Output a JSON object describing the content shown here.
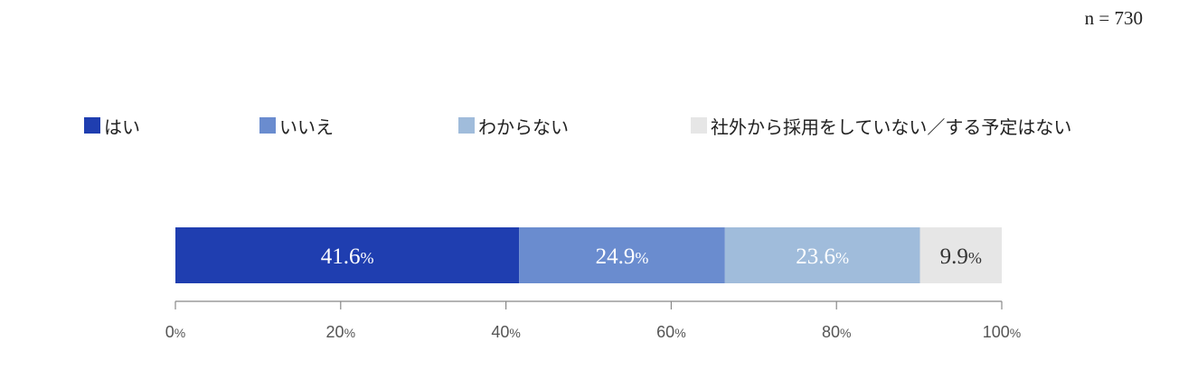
{
  "note": "n = 730",
  "chart_data": {
    "type": "bar",
    "orientation": "horizontal",
    "stacked": true,
    "categories": [
      ""
    ],
    "series": [
      {
        "name": "はい",
        "values": [
          41.6
        ],
        "color": "#1f3eb0",
        "label": "41.6"
      },
      {
        "name": "いいえ",
        "values": [
          24.9
        ],
        "color": "#6a8ccf",
        "label": "24.9"
      },
      {
        "name": "わからない",
        "values": [
          23.6
        ],
        "color": "#a0bcdb",
        "label": "23.6"
      },
      {
        "name": "社外から採用をしていない／する予定はない",
        "values": [
          9.9
        ],
        "color": "#e6e6e6",
        "label": "9.9"
      }
    ],
    "value_suffix": "%",
    "xlim": [
      0,
      100
    ],
    "xticks": [
      0,
      20,
      40,
      60,
      80,
      100
    ],
    "xtick_suffix": "%",
    "grid": false,
    "legend_position": "top"
  }
}
